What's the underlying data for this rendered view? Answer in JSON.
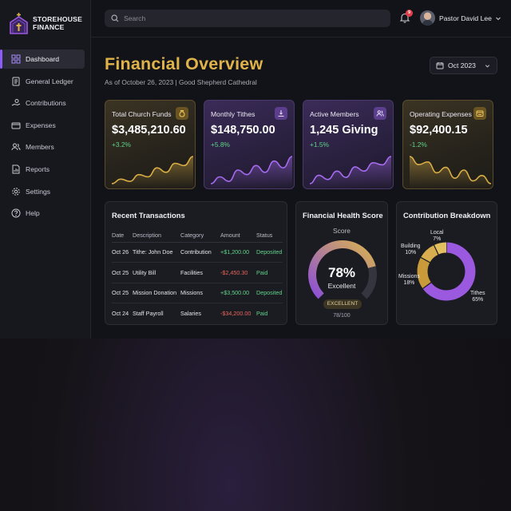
{
  "brand": {
    "line1": "STOREHOUSE",
    "line2": "FINANCE"
  },
  "sidebar": {
    "items": [
      {
        "label": "Dashboard",
        "icon": "grid-icon",
        "active": true
      },
      {
        "label": "General Ledger",
        "icon": "ledger-icon"
      },
      {
        "label": "Contributions",
        "icon": "hand-coin-icon"
      },
      {
        "label": "Expenses",
        "icon": "wallet-icon"
      },
      {
        "label": "Members",
        "icon": "users-icon"
      },
      {
        "label": "Reports",
        "icon": "report-icon"
      },
      {
        "label": "Settings",
        "icon": "gear-icon"
      },
      {
        "label": "Help",
        "icon": "help-icon"
      }
    ]
  },
  "topbar": {
    "search_placeholder": "Search",
    "notifications": "9",
    "user_name": "Pastor David Lee"
  },
  "page": {
    "title": "Financial Overview",
    "subtitle": "As of October 26, 2023 | Good Shepherd Cathedral",
    "period": "Oct 2023"
  },
  "kpis": [
    {
      "label": "Total Church Funds",
      "value": "$3,485,210.60",
      "change": "+3.2%",
      "theme": "gold",
      "icon": "money-bag-icon",
      "trend": [
        4,
        6,
        5,
        8,
        7,
        11,
        9,
        13,
        12,
        16
      ]
    },
    {
      "label": "Monthly Tithes",
      "value": "$148,750.00",
      "change": "+5.8%",
      "theme": "purple",
      "icon": "tithe-icon",
      "trend": [
        5,
        8,
        6,
        11,
        9,
        13,
        10,
        15,
        12,
        17
      ]
    },
    {
      "label": "Active Members",
      "value": "1,245 Giving",
      "change": "+1.5%",
      "theme": "purple",
      "icon": "members-icon",
      "trend": [
        4,
        8,
        6,
        10,
        7,
        12,
        10,
        14,
        13,
        17
      ]
    },
    {
      "label": "Operating Expenses",
      "value": "$92,400.15",
      "change": "-1.2%",
      "theme": "gold",
      "icon": "expense-icon",
      "trend": [
        15,
        12,
        13,
        9,
        11,
        7,
        10,
        6,
        8,
        5
      ]
    }
  ],
  "transactions": {
    "title": "Recent Transactions",
    "headers": [
      "Date",
      "Description",
      "Category",
      "Amount",
      "Status"
    ],
    "rows": [
      {
        "date": "Oct 26",
        "description": "Tithe: John Doe",
        "category": "Contribution",
        "amount": "+$1,200.00",
        "status": "Deposited",
        "sign": "pos"
      },
      {
        "date": "Oct 25",
        "description": "Utility Bill",
        "category": "Facilities",
        "amount": "-$2,450.30",
        "status": "Paid",
        "sign": "neg"
      },
      {
        "date": "Oct 25",
        "description": "Mission Donation",
        "category": "Missions",
        "amount": "+$3,500.00",
        "status": "Deposited",
        "sign": "pos"
      },
      {
        "date": "Oct 24",
        "description": "Staff Payroll",
        "category": "Salaries",
        "amount": "-$34,200.00",
        "status": "Paid",
        "sign": "neg"
      }
    ]
  },
  "health": {
    "title": "Financial Health Score",
    "label": "Score",
    "percent": "78%",
    "value": 78,
    "word": "Excellent",
    "badge": "EXCELLENT",
    "fraction": "78/100"
  },
  "breakdown": {
    "title": "Contribution Breakdown",
    "slices": [
      {
        "name": "Tithes",
        "value": 65,
        "pct": "65%",
        "color": "#9b59e0"
      },
      {
        "name": "Missions",
        "value": 18,
        "pct": "18%",
        "color": "#c99a3a"
      },
      {
        "name": "Building",
        "value": 10,
        "pct": "10%",
        "color": "#d8ad4f"
      },
      {
        "name": "Local",
        "value": 7,
        "pct": "7%",
        "color": "#e2c060"
      }
    ]
  },
  "colors": {
    "accent_gold": "#e0b34a",
    "accent_purple": "#8b5cf6",
    "positive": "#5fd38a",
    "negative": "#e8645a"
  }
}
